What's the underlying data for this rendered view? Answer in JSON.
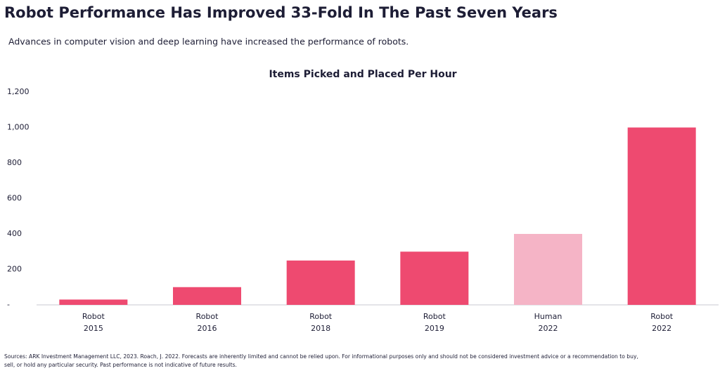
{
  "title": "Robot Performance Has Improved 33-Fold In The Past Seven Years",
  "subtitle": "Advances in computer vision and deep learning have increased the performance of robots.",
  "chart_data": {
    "type": "bar",
    "title": "Items Picked and Placed Per Hour",
    "categories": [
      [
        "Robot",
        "2015"
      ],
      [
        "Robot",
        "2016"
      ],
      [
        "Robot",
        "2018"
      ],
      [
        "Robot",
        "2019"
      ],
      [
        "Human",
        "2022"
      ],
      [
        "Robot",
        "2022"
      ]
    ],
    "values": [
      30,
      100,
      250,
      300,
      400,
      1000
    ],
    "colors": [
      "#ee4a70",
      "#ee4a70",
      "#ee4a70",
      "#ee4a70",
      "#f5b4c6",
      "#ee4a70"
    ],
    "ylim": [
      0,
      1200
    ],
    "yticks": [
      {
        "value": 0,
        "label": "-"
      },
      200,
      400,
      600,
      800,
      {
        "value": 1000,
        "label": "1,000"
      },
      {
        "value": 1200,
        "label": "1,200"
      }
    ],
    "grid": false
  },
  "footer": [
    "Sources: ARK Investment Management LLC, 2023. Roach, J. 2022. Forecasts are inherently limited and cannot be relied upon. For informational purposes only and should not be considered investment advice or a recommendation to buy,",
    "sell, or hold any particular security. Past performance is not indicative of future results."
  ]
}
